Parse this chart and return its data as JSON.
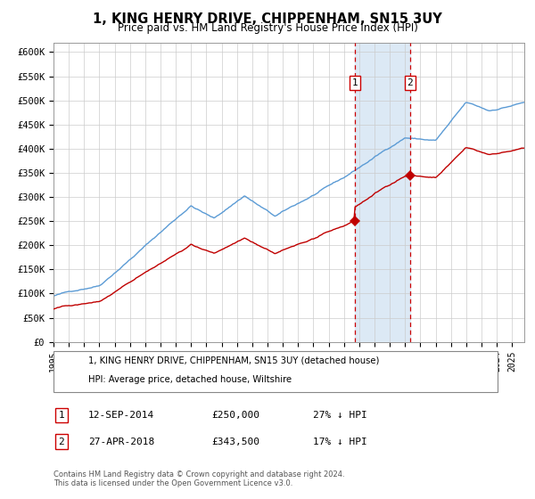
{
  "title": "1, KING HENRY DRIVE, CHIPPENHAM, SN15 3UY",
  "subtitle": "Price paid vs. HM Land Registry's House Price Index (HPI)",
  "legend_line1": "1, KING HENRY DRIVE, CHIPPENHAM, SN15 3UY (detached house)",
  "legend_line2": "HPI: Average price, detached house, Wiltshire",
  "transaction1_date": "12-SEP-2014",
  "transaction1_price": 250000,
  "transaction1_label": "27% ↓ HPI",
  "transaction2_date": "27-APR-2018",
  "transaction2_price": 343500,
  "transaction2_label": "17% ↓ HPI",
  "footer": "Contains HM Land Registry data © Crown copyright and database right 2024.\nThis data is licensed under the Open Government Licence v3.0.",
  "hpi_color": "#5b9bd5",
  "property_color": "#c00000",
  "marker_color": "#c00000",
  "vline_color": "#cc0000",
  "shade_color": "#dce9f5",
  "ytick_labels": [
    "£0",
    "£50K",
    "£100K",
    "£150K",
    "£200K",
    "£250K",
    "£300K",
    "£350K",
    "£400K",
    "£450K",
    "£500K",
    "£550K",
    "£600K"
  ],
  "ytick_values": [
    0,
    50000,
    100000,
    150000,
    200000,
    250000,
    300000,
    350000,
    400000,
    450000,
    500000,
    550000,
    600000
  ],
  "ylim": [
    0,
    620000
  ],
  "xlim_start": 1995.0,
  "xlim_end": 2025.8,
  "transaction1_x": 2014.7,
  "transaction2_x": 2018.33
}
